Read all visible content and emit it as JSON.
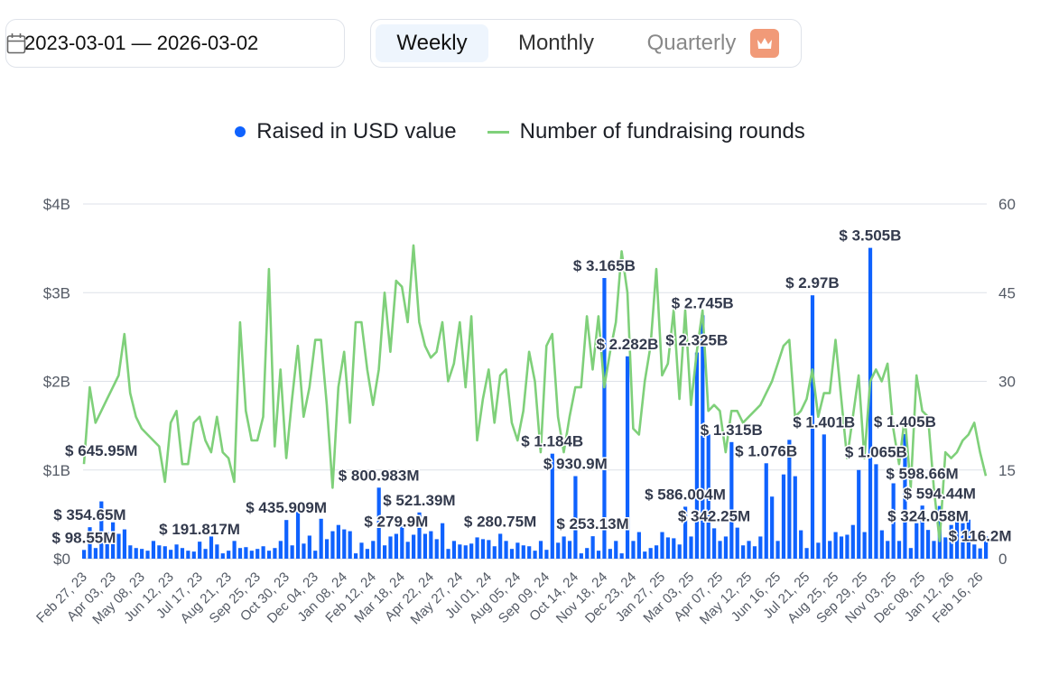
{
  "date_range": {
    "value": "2023-03-01 — 2026-03-02",
    "icon": "calendar-icon"
  },
  "period_toggle": {
    "options": [
      "Weekly",
      "Monthly",
      "Quarterly"
    ],
    "selected": "Weekly",
    "premium_icon": "crown-icon"
  },
  "colors": {
    "bars": "#0f62fe",
    "line": "#7fd07a",
    "accent_premium": "#f19a78"
  },
  "chart_data": {
    "type": "bar+line",
    "legend": [
      "Raised in USD value",
      "Number of fundraising rounds"
    ],
    "legend_position": "top",
    "grid": true,
    "y_left": {
      "ticks": [
        "$0",
        "$1B",
        "$2B",
        "$3B",
        "$4B"
      ],
      "range": [
        0,
        4000
      ],
      "unit": "USD millions"
    },
    "y_right": {
      "ticks": [
        "0",
        "15",
        "30",
        "45",
        "60"
      ],
      "range": [
        0,
        60
      ]
    },
    "x_tick_labels": [
      "Feb 27, 23",
      "Apr 03, 23",
      "May 08, 23",
      "Jun 12, 23",
      "Jul 17, 23",
      "Aug 21, 23",
      "Sep 25, 23",
      "Oct 30, 23",
      "Dec 04, 23",
      "Jan 08, 24",
      "Feb 12, 24",
      "Mar 18, 24",
      "Apr 22, 24",
      "May 27, 24",
      "Jul 01, 24",
      "Aug 05, 24",
      "Sep 09, 24",
      "Oct 14, 24",
      "Nov 18, 24",
      "Dec 23, 24",
      "Jan 27, 25",
      "Mar 03, 25",
      "Apr 07, 25",
      "May 12, 25",
      "Jun 16, 25",
      "Jul 21, 25",
      "Aug 25, 25",
      "Sep 29, 25",
      "Nov 03, 25",
      "Dec 08, 25",
      "Jan 12, 26",
      "Feb 16, 26"
    ],
    "x_tick_every_weeks": 5,
    "raised_usd_millions": [
      98.55,
      354.65,
      120,
      645.95,
      300,
      410,
      280,
      330,
      150,
      120,
      110,
      90,
      200,
      150,
      140,
      100,
      160,
      120,
      90,
      80,
      191.817,
      110,
      250,
      160,
      60,
      90,
      200,
      120,
      130,
      90,
      110,
      140,
      90,
      120,
      200,
      435.909,
      150,
      530,
      170,
      260,
      90,
      450,
      220,
      310,
      380,
      330,
      310,
      60,
      180,
      110,
      200,
      800.983,
      150,
      250,
      279.9,
      380,
      190,
      270,
      521.39,
      280,
      310,
      220,
      400,
      110,
      200,
      160,
      150,
      170,
      240,
      220,
      210,
      140,
      280.75,
      200,
      110,
      180,
      150,
      140,
      90,
      200,
      100,
      1184,
      180,
      250,
      200,
      930.9,
      60,
      120,
      253.13,
      90,
      3165,
      110,
      200,
      60,
      2282,
      200,
      300,
      80,
      120,
      150,
      300,
      240,
      230,
      160,
      586.004,
      250,
      2325,
      2745,
      1400,
      342.25,
      200,
      250,
      1315,
      350,
      150,
      200,
      140,
      250,
      1076,
      700,
      200,
      950,
      1340,
      930,
      320,
      120,
      2970,
      180,
      1401,
      200,
      300,
      250,
      270,
      380,
      1000,
      300,
      3505,
      1065,
      320,
      200,
      850,
      200,
      1405,
      120,
      400,
      598.66,
      324.058,
      200,
      594.44,
      240,
      380,
      420,
      400,
      440,
      160,
      116.2,
      250
    ],
    "rounds": [
      16,
      29,
      23,
      25,
      27,
      29,
      31,
      38,
      28,
      24,
      22,
      21,
      20,
      19,
      13,
      23,
      25,
      16,
      16,
      23,
      24,
      20,
      18,
      24,
      18,
      17,
      13,
      40,
      25,
      20,
      20,
      24,
      49,
      19,
      32,
      17,
      27,
      36,
      24,
      29,
      37,
      37,
      26,
      12,
      29,
      35,
      23,
      40,
      40,
      32,
      26,
      32,
      45,
      35,
      47,
      46,
      40,
      53,
      40,
      36,
      34,
      35,
      40,
      30,
      33,
      40,
      29,
      41,
      20,
      27,
      32,
      23,
      31,
      32,
      23,
      20,
      25,
      35,
      30,
      18,
      36,
      38,
      24,
      18,
      24,
      29,
      29,
      41,
      32,
      41,
      29,
      35,
      40,
      52,
      45,
      22,
      21,
      30,
      36,
      49,
      31,
      33,
      42,
      27,
      42,
      26,
      35,
      42,
      25,
      26,
      25,
      18,
      25,
      25,
      23,
      24,
      25,
      26,
      28,
      30,
      33,
      36,
      37,
      24,
      25,
      27,
      32,
      24,
      28,
      28,
      37,
      27,
      17,
      24,
      31,
      17,
      30,
      32,
      30,
      33,
      22,
      16,
      24,
      12,
      31,
      25,
      24,
      12,
      3,
      18,
      17,
      18,
      20,
      21,
      23,
      18,
      14
    ],
    "data_labels": [
      {
        "week": 0,
        "text": "$ 98.55M"
      },
      {
        "week": 1,
        "text": "$ 354.65M"
      },
      {
        "week": 3,
        "text": "$ 645.95M"
      },
      {
        "week": 20,
        "text": "$ 191.817M"
      },
      {
        "week": 35,
        "text": "$ 435.909M"
      },
      {
        "week": 51,
        "text": "$ 800.983M"
      },
      {
        "week": 54,
        "text": "$ 279.9M"
      },
      {
        "week": 58,
        "text": "$ 521.39M"
      },
      {
        "week": 72,
        "text": "$ 280.75M"
      },
      {
        "week": 81,
        "text": "$ 1.184B"
      },
      {
        "week": 85,
        "text": "$ 930.9M"
      },
      {
        "week": 88,
        "text": "$ 253.13M"
      },
      {
        "week": 90,
        "text": "$ 3.165B"
      },
      {
        "week": 94,
        "text": "$ 2.282B"
      },
      {
        "week": 104,
        "text": "$ 586.004M"
      },
      {
        "week": 106,
        "text": "$ 2.325B"
      },
      {
        "week": 107,
        "text": "$ 2.745B"
      },
      {
        "week": 109,
        "text": "$ 342.25M"
      },
      {
        "week": 112,
        "text": "$ 1.315B"
      },
      {
        "week": 118,
        "text": "$ 1.076B"
      },
      {
        "week": 126,
        "text": "$ 2.97B"
      },
      {
        "week": 128,
        "text": "$ 1.401B"
      },
      {
        "week": 136,
        "text": "$ 3.505B"
      },
      {
        "week": 137,
        "text": "$ 1.065B"
      },
      {
        "week": 142,
        "text": "$ 1.405B"
      },
      {
        "week": 145,
        "text": "$ 598.66M"
      },
      {
        "week": 146,
        "text": "$ 324.058M"
      },
      {
        "week": 148,
        "text": "$ 594.44M"
      },
      {
        "week": 155,
        "text": "$ 116.2M"
      }
    ]
  }
}
